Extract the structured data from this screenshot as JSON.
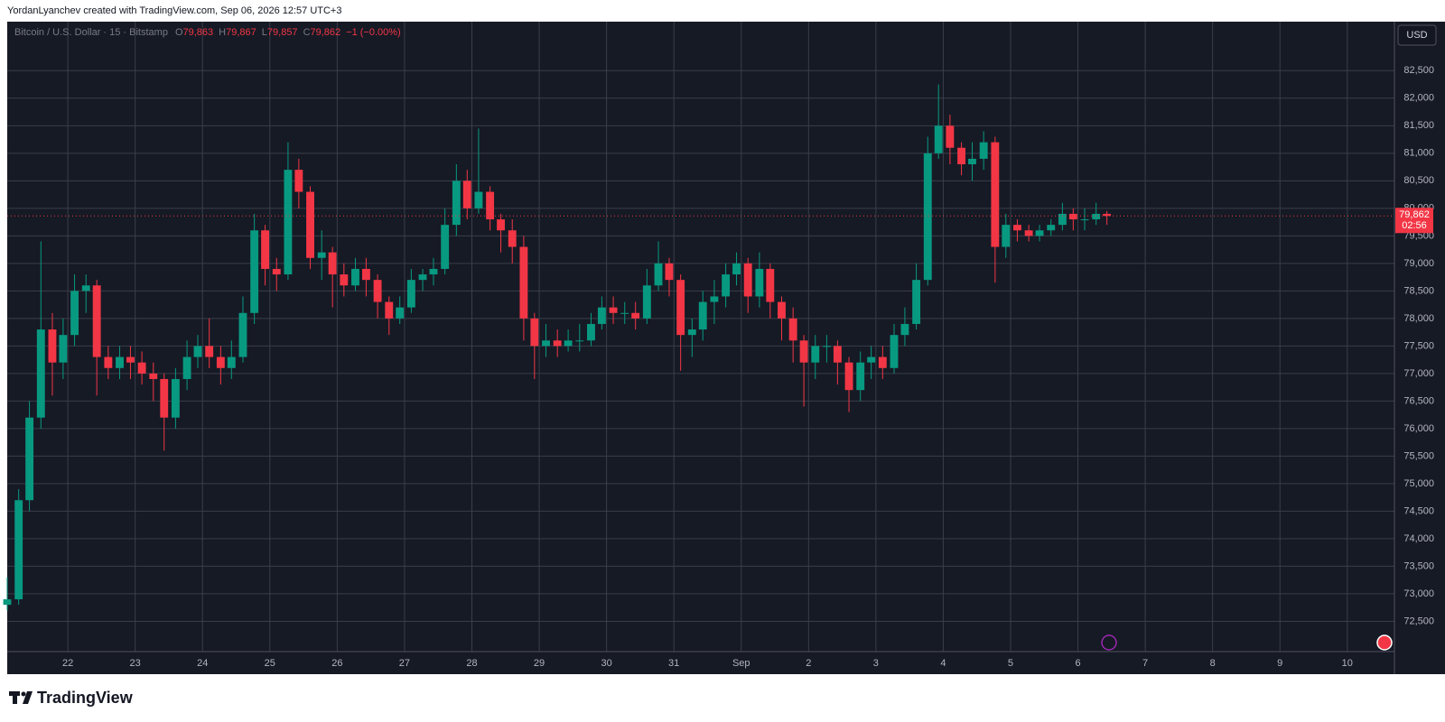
{
  "header": "YordanLyanchev created with TradingView.com, Sep 06, 2026 12:57 UTC+3",
  "currency_button": "USD",
  "logo": "TradingView",
  "chart_data": {
    "type": "candlestick",
    "symbol": "Bitcoin / U.S. Dollar · 15 · Bitstamp",
    "ohlc_legend": [
      {
        "key": "O",
        "value": "79,863"
      },
      {
        "key": "H",
        "value": "79,867"
      },
      {
        "key": "L",
        "value": "79,857"
      },
      {
        "key": "C",
        "value": "79,862"
      }
    ],
    "change": "−1 (−0.00%)",
    "last_price": {
      "value": 79862,
      "label": "79,862"
    },
    "countdown": "02:56",
    "up_color": "#089981",
    "down_color": "#f23645",
    "grid": true,
    "x": [
      21.1,
      21.27,
      21.43,
      21.6,
      21.77,
      21.93,
      22.1,
      22.27,
      22.43,
      22.6,
      22.77,
      22.93,
      23.1,
      23.27,
      23.43,
      23.6,
      23.77,
      23.93,
      24.1,
      24.27,
      24.43,
      24.6,
      24.77,
      24.93,
      25.1,
      25.27,
      25.43,
      25.6,
      25.77,
      25.93,
      26.1,
      26.27,
      26.43,
      26.6,
      26.77,
      26.93,
      27.1,
      27.27,
      27.43,
      27.6,
      27.77,
      27.93,
      28.1,
      28.27,
      28.43,
      28.6,
      28.77,
      28.93,
      29.1,
      29.27,
      29.43,
      29.6,
      29.77,
      29.93,
      30.1,
      30.27,
      30.43,
      30.6,
      30.77,
      30.93,
      31.1,
      31.27,
      31.43,
      31.6,
      31.77,
      31.93,
      32.1,
      32.27,
      32.43,
      32.6,
      32.77,
      32.93,
      33.1,
      33.27,
      33.43,
      33.6,
      33.77,
      33.93,
      34.1,
      34.27,
      34.43,
      34.6,
      34.77,
      34.93,
      35.1,
      35.27,
      35.43,
      35.6,
      35.77,
      35.93,
      36.1,
      36.27,
      36.43,
      36.6,
      36.77,
      36.93,
      37.1,
      37.27,
      37.43
    ],
    "open": [
      72800,
      72900,
      74700,
      76200,
      77800,
      77200,
      77700,
      78500,
      78600,
      77300,
      77100,
      77300,
      77200,
      77000,
      76900,
      76200,
      76900,
      77300,
      77500,
      77300,
      77100,
      77300,
      78100,
      79600,
      78900,
      78800,
      80700,
      80300,
      79100,
      79200,
      78800,
      78600,
      78900,
      78700,
      78300,
      78000,
      78200,
      78700,
      78800,
      78900,
      79700,
      80500,
      80000,
      80300,
      79800,
      79600,
      79300,
      78000,
      77500,
      77600,
      77500,
      77600,
      77600,
      77900,
      78200,
      78100,
      78100,
      78000,
      78600,
      79000,
      78700,
      77700,
      77800,
      78300,
      78400,
      78800,
      79000,
      78400,
      78900,
      78300,
      78000,
      77600,
      77200,
      77500,
      77500,
      77200,
      76700,
      77200,
      77300,
      77100,
      77700,
      77900,
      78700,
      81000,
      81500,
      81100,
      80800,
      80900,
      81200,
      79300,
      79700,
      79600,
      79500,
      79600,
      79700,
      79900,
      79800,
      79800,
      79900
    ],
    "high": [
      73300,
      74900,
      76500,
      79400,
      78100,
      78000,
      78800,
      78800,
      78700,
      77500,
      77500,
      77500,
      77400,
      77200,
      77000,
      77100,
      77600,
      77700,
      78000,
      77500,
      77600,
      78400,
      79900,
      79700,
      79100,
      81200,
      80900,
      80400,
      79600,
      79300,
      79000,
      79100,
      79100,
      78800,
      78400,
      78400,
      78900,
      78900,
      79100,
      80000,
      80800,
      80700,
      81450,
      80400,
      79900,
      79800,
      79500,
      78100,
      77900,
      77800,
      77800,
      77900,
      78100,
      78400,
      78400,
      78300,
      78300,
      78900,
      79400,
      79100,
      78800,
      78000,
      78500,
      78700,
      79000,
      79200,
      79100,
      79200,
      79000,
      78400,
      78200,
      77700,
      77700,
      77700,
      77600,
      77300,
      77400,
      77500,
      77500,
      77900,
      78200,
      79000,
      81300,
      82250,
      81700,
      81200,
      81200,
      81400,
      81300,
      79900,
      79800,
      79700,
      79700,
      79800,
      80100,
      80000,
      80000,
      80100,
      79950
    ],
    "low": [
      72700,
      72800,
      74500,
      76000,
      76600,
      76900,
      77500,
      78100,
      76600,
      76900,
      76900,
      76900,
      76800,
      76500,
      75600,
      76000,
      76700,
      77100,
      77100,
      76800,
      76900,
      77200,
      77900,
      78600,
      78500,
      78700,
      80000,
      78900,
      78700,
      78200,
      78400,
      78500,
      78400,
      78000,
      77700,
      77900,
      78100,
      78500,
      78600,
      78800,
      79500,
      79800,
      79900,
      79600,
      79200,
      79000,
      77600,
      76900,
      77300,
      77300,
      77400,
      77400,
      77500,
      77800,
      77900,
      77900,
      77800,
      77900,
      78500,
      78400,
      77050,
      77300,
      77600,
      77900,
      78200,
      78600,
      78100,
      78200,
      78000,
      77600,
      77200,
      76400,
      76900,
      77200,
      76800,
      76300,
      76500,
      76900,
      76900,
      77000,
      77500,
      77800,
      78600,
      80900,
      80800,
      80600,
      80500,
      80700,
      78650,
      79100,
      79400,
      79400,
      79400,
      79500,
      79600,
      79600,
      79600,
      79700,
      79700
    ],
    "close": [
      72900,
      74700,
      76200,
      77800,
      77200,
      77700,
      78500,
      78600,
      77300,
      77100,
      77300,
      77200,
      77000,
      76900,
      76200,
      76900,
      77300,
      77500,
      77300,
      77100,
      77300,
      78100,
      79600,
      78900,
      78800,
      80700,
      80300,
      79100,
      79200,
      78800,
      78600,
      78900,
      78700,
      78300,
      78000,
      78200,
      78700,
      78800,
      78900,
      79700,
      80500,
      80000,
      80300,
      79800,
      79600,
      79300,
      78000,
      77500,
      77600,
      77500,
      77600,
      77600,
      77900,
      78200,
      78100,
      78100,
      78000,
      78600,
      79000,
      78700,
      77700,
      77800,
      78300,
      78400,
      78800,
      79000,
      78400,
      78900,
      78300,
      78000,
      77600,
      77200,
      77500,
      77500,
      77200,
      76700,
      77200,
      77300,
      77100,
      77700,
      77900,
      78700,
      81000,
      81500,
      81100,
      80800,
      80900,
      81200,
      79300,
      79700,
      79600,
      79500,
      79600,
      79700,
      79900,
      79800,
      79800,
      79900,
      79862
    ],
    "xlim": [
      21.1,
      41.7
    ],
    "xticks": [
      22,
      23,
      24,
      25,
      26,
      27,
      28,
      29,
      30,
      31,
      {
        "value": 32,
        "label": "Sep"
      },
      {
        "value": 33,
        "label": "2"
      },
      {
        "value": 34,
        "label": "3"
      },
      {
        "value": 35,
        "label": "4"
      },
      {
        "value": 36,
        "label": "5"
      },
      {
        "value": 37,
        "label": "6"
      },
      {
        "value": 38,
        "label": "7"
      },
      {
        "value": 39,
        "label": "8"
      },
      {
        "value": 40,
        "label": "9"
      },
      {
        "value": 41,
        "label": "10"
      }
    ],
    "ylim": [
      71950,
      83390
    ],
    "yticks": [
      {
        "value": 72500,
        "label": "72,500"
      },
      {
        "value": 73000,
        "label": "73,000"
      },
      {
        "value": 73500,
        "label": "73,500"
      },
      {
        "value": 74000,
        "label": "74,000"
      },
      {
        "value": 74500,
        "label": "74,500"
      },
      {
        "value": 75000,
        "label": "75,000"
      },
      {
        "value": 75500,
        "label": "75,500"
      },
      {
        "value": 76000,
        "label": "76,000"
      },
      {
        "value": 76500,
        "label": "76,500"
      },
      {
        "value": 77000,
        "label": "77,000"
      },
      {
        "value": 77500,
        "label": "77,500"
      },
      {
        "value": 78000,
        "label": "78,000"
      },
      {
        "value": 78500,
        "label": "78,500"
      },
      {
        "value": 79000,
        "label": "79,000"
      },
      {
        "value": 79500,
        "label": "79,500"
      },
      {
        "value": 80000,
        "label": "80,000"
      },
      {
        "value": 80500,
        "label": "80,500"
      },
      {
        "value": 81000,
        "label": "81,000"
      },
      {
        "value": 81500,
        "label": "81,500"
      },
      {
        "value": 82000,
        "label": "82,000"
      },
      {
        "value": 82500,
        "label": "82,500"
      }
    ]
  }
}
